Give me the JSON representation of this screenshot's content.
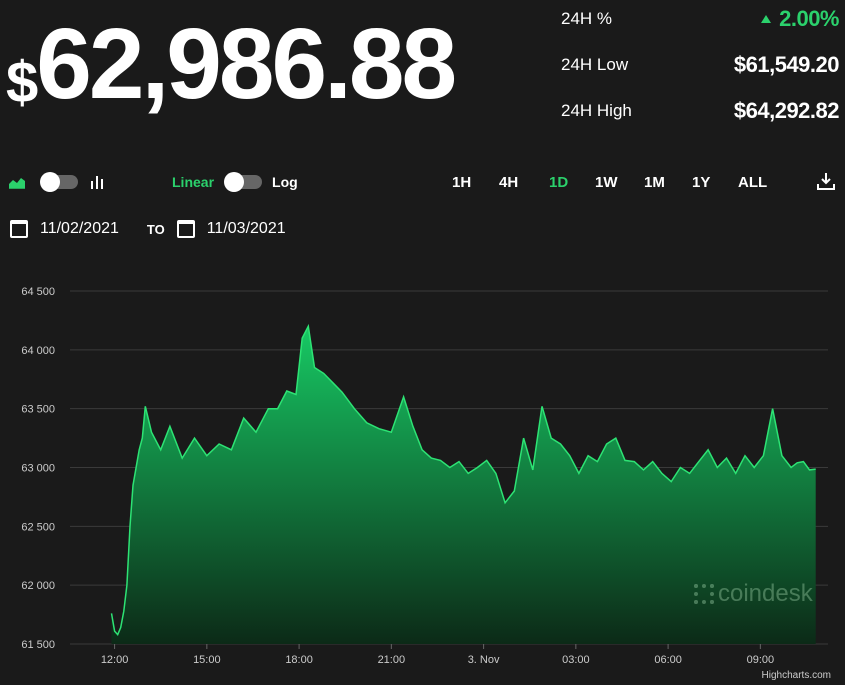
{
  "price": {
    "currency": "$",
    "value": "62,986.88"
  },
  "stats": {
    "change_label": "24H %",
    "change_value": "2.00%",
    "low_label": "24H Low",
    "low_value": "$61,549.20",
    "high_label": "24H High",
    "high_value": "$64,292.82"
  },
  "controls": {
    "scale_linear": "Linear",
    "scale_log": "Log",
    "ranges": [
      "1H",
      "4H",
      "1D",
      "1W",
      "1M",
      "1Y",
      "ALL"
    ],
    "active_range": "1D"
  },
  "dates": {
    "from": "11/02/2021",
    "to_label": "TO",
    "to": "11/03/2021"
  },
  "watermark": "coindesk",
  "credit": "Highcharts.com",
  "colors": {
    "accent": "#2bd16c",
    "background": "#1a1a1a"
  },
  "chart_data": {
    "type": "area",
    "ylim": [
      61500,
      64500
    ],
    "yticks": [
      64500,
      64000,
      63500,
      63000,
      62500,
      62000,
      61500
    ],
    "ytick_labels": [
      "64 500",
      "64 000",
      "63 500",
      "63 000",
      "62 500",
      "62 000",
      "61 500"
    ],
    "xticks": [
      {
        "label": "12:00",
        "h": 12
      },
      {
        "label": "15:00",
        "h": 15
      },
      {
        "label": "18:00",
        "h": 18
      },
      {
        "label": "21:00",
        "h": 21
      },
      {
        "label": "3. Nov",
        "h": 24
      },
      {
        "label": "03:00",
        "h": 27
      },
      {
        "label": "06:00",
        "h": 30
      },
      {
        "label": "09:00",
        "h": 33
      }
    ],
    "x_hours": [
      11.9,
      12.0,
      12.1,
      12.2,
      12.3,
      12.4,
      12.5,
      12.6,
      12.7,
      12.8,
      12.9,
      13.0,
      13.2,
      13.5,
      13.8,
      14.2,
      14.6,
      15.0,
      15.4,
      15.8,
      16.2,
      16.6,
      17.0,
      17.3,
      17.6,
      17.9,
      18.1,
      18.3,
      18.5,
      18.8,
      19.1,
      19.4,
      19.8,
      20.2,
      20.6,
      21.0,
      21.4,
      21.7,
      22.0,
      22.3,
      22.6,
      22.9,
      23.2,
      23.5,
      23.8,
      24.1,
      24.4,
      24.7,
      25.0,
      25.3,
      25.6,
      25.9,
      26.2,
      26.5,
      26.8,
      27.1,
      27.4,
      27.7,
      28.0,
      28.3,
      28.6,
      28.9,
      29.2,
      29.5,
      29.8,
      30.1,
      30.4,
      30.7,
      31.0,
      31.3,
      31.6,
      31.9,
      32.2,
      32.5,
      32.8,
      33.1,
      33.4,
      33.7,
      34.0,
      34.2,
      34.4,
      34.6,
      34.8
    ],
    "y_values": [
      61760,
      61610,
      61580,
      61640,
      61780,
      62000,
      62500,
      62850,
      63000,
      63150,
      63250,
      63520,
      63300,
      63150,
      63350,
      63080,
      63250,
      63100,
      63200,
      63150,
      63420,
      63300,
      63500,
      63500,
      63650,
      63620,
      64100,
      64200,
      63850,
      63800,
      63720,
      63640,
      63500,
      63380,
      63330,
      63300,
      63600,
      63350,
      63150,
      63080,
      63060,
      63000,
      63050,
      62950,
      63000,
      63060,
      62950,
      62700,
      62800,
      63250,
      62980,
      63520,
      63250,
      63200,
      63100,
      62950,
      63100,
      63050,
      63200,
      63250,
      63060,
      63050,
      62980,
      63050,
      62950,
      62880,
      63000,
      62950,
      63050,
      63150,
      63000,
      63080,
      62950,
      63100,
      63000,
      63100,
      63500,
      63100,
      63000,
      63040,
      63050,
      62980,
      62986
    ]
  }
}
